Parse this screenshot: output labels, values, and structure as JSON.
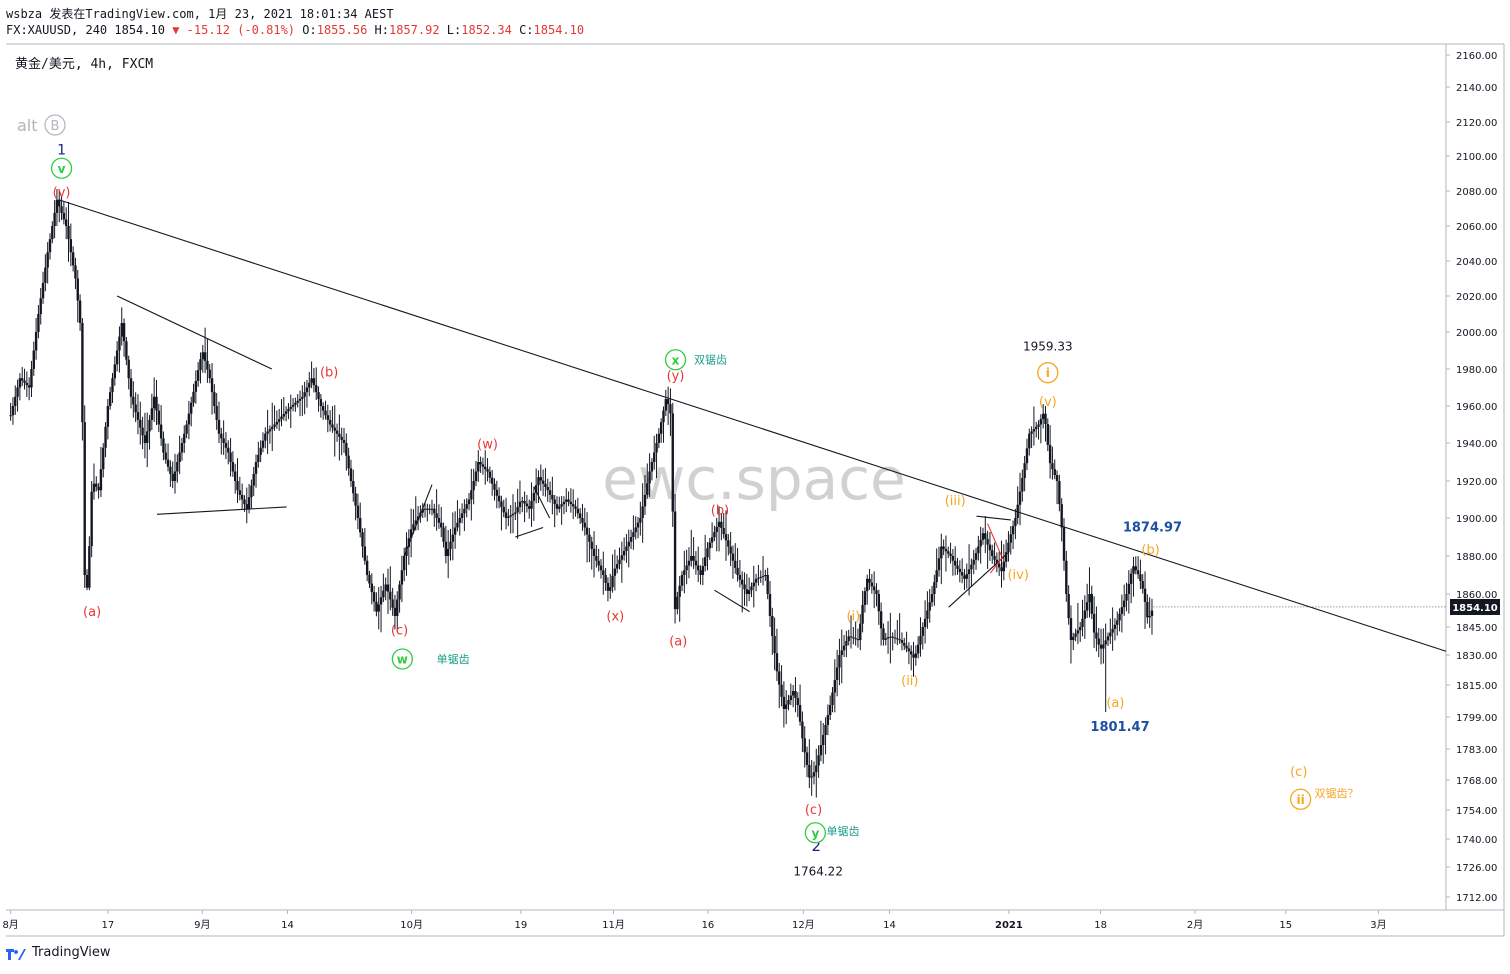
{
  "header": {
    "line1": "wsbza 发表在TradingView.com, 1月 23, 2021 18:01:34 AEST",
    "symbol": "FX:XAUUSD, 240 1854.10",
    "change": "-15.12 (-0.81%)",
    "o_label": "O:",
    "o": "1855.56",
    "h_label": "H:",
    "h": "1857.92",
    "l_label": "L:",
    "l": "1852.34",
    "c_label": "C:",
    "c": "1854.10"
  },
  "symbol_label": "黄金/美元, 4h, FXCM",
  "alt_label": "alt",
  "alt_badge": "B",
  "watermark": "ewc.space",
  "footer": {
    "brand": "TradingView"
  },
  "colors": {
    "candle": "#131722",
    "red": "#e53935",
    "green": "#2ecc40",
    "orange": "#f5a623",
    "blue": "#1a237e",
    "navy": "#1e4fa0",
    "teal": "#1a9e8a"
  },
  "chart_data": {
    "type": "candlestick",
    "ylim": [
      1698,
      2168
    ],
    "yticks": [
      "2160.00",
      "2140.00",
      "2120.00",
      "2100.00",
      "2080.00",
      "2060.00",
      "2040.00",
      "2020.00",
      "2000.00",
      "1980.00",
      "1960.00",
      "1940.00",
      "1920.00",
      "1900.00",
      "1880.00",
      "1860.00",
      "1845.00",
      "1830.00",
      "1815.00",
      "1799.00",
      "1783.00",
      "1768.00",
      "1754.00",
      "1740.00",
      "1726.00",
      "1712.00"
    ],
    "xticks": [
      {
        "label": "8月",
        "x": 0.0
      },
      {
        "label": "17",
        "x": 10.5
      },
      {
        "label": "9月",
        "x": 20.7
      },
      {
        "label": "14",
        "x": 29.9
      },
      {
        "label": "10月",
        "x": 43.3
      },
      {
        "label": "19",
        "x": 55.1
      },
      {
        "label": "11月",
        "x": 65.1
      },
      {
        "label": "16",
        "x": 75.3
      },
      {
        "label": "12月",
        "x": 85.6
      },
      {
        "label": "14",
        "x": 94.9
      },
      {
        "label": "2021",
        "x": 107.8
      },
      {
        "label": "18",
        "x": 117.7
      },
      {
        "label": "2月",
        "x": 127.9
      },
      {
        "label": "15",
        "x": 137.7
      },
      {
        "label": "3月",
        "x": 147.7
      }
    ],
    "last_price": "1854.10",
    "price_path": [
      [
        0,
        1955
      ],
      [
        1,
        1975
      ],
      [
        2,
        1970
      ],
      [
        3,
        2010
      ],
      [
        4,
        2045
      ],
      [
        5,
        2075
      ],
      [
        6,
        2060
      ],
      [
        7,
        2030
      ],
      [
        7.6,
        2000
      ],
      [
        8.0,
        1870
      ],
      [
        8.3,
        1862
      ],
      [
        8.8,
        1920
      ],
      [
        9.5,
        1915
      ],
      [
        10.5,
        1960
      ],
      [
        12.0,
        2005
      ],
      [
        13.0,
        1965
      ],
      [
        14.5,
        1940
      ],
      [
        15.5,
        1965
      ],
      [
        16.5,
        1935
      ],
      [
        17.5,
        1920
      ],
      [
        19.0,
        1950
      ],
      [
        20.7,
        1990
      ],
      [
        21.5,
        1975
      ],
      [
        22.5,
        1945
      ],
      [
        23.5,
        1935
      ],
      [
        24.5,
        1915
      ],
      [
        25.5,
        1905
      ],
      [
        26.5,
        1930
      ],
      [
        27.5,
        1945
      ],
      [
        28.5,
        1950
      ],
      [
        29.9,
        1958
      ],
      [
        31.5,
        1965
      ],
      [
        32.5,
        1975
      ],
      [
        33.5,
        1960
      ],
      [
        34.5,
        1950
      ],
      [
        36.0,
        1940
      ],
      [
        37.5,
        1900
      ],
      [
        38.5,
        1870
      ],
      [
        39.5,
        1852
      ],
      [
        40.5,
        1865
      ],
      [
        41.5,
        1850
      ],
      [
        42.5,
        1880
      ],
      [
        43.3,
        1895
      ],
      [
        44.5,
        1905
      ],
      [
        45.5,
        1905
      ],
      [
        46.5,
        1895
      ],
      [
        47.0,
        1880
      ],
      [
        48.0,
        1895
      ],
      [
        49.5,
        1910
      ],
      [
        50.5,
        1930
      ],
      [
        51.5,
        1925
      ],
      [
        52.5,
        1912
      ],
      [
        53.5,
        1900
      ],
      [
        54.5,
        1903
      ],
      [
        55.1,
        1910
      ],
      [
        56.0,
        1905
      ],
      [
        57.0,
        1922
      ],
      [
        58.0,
        1915
      ],
      [
        59.0,
        1905
      ],
      [
        60.0,
        1910
      ],
      [
        61.0,
        1905
      ],
      [
        62.0,
        1895
      ],
      [
        63.0,
        1880
      ],
      [
        64.0,
        1870
      ],
      [
        64.6,
        1860
      ],
      [
        65.1,
        1872
      ],
      [
        66.5,
        1885
      ],
      [
        68.0,
        1900
      ],
      [
        69.0,
        1925
      ],
      [
        70.0,
        1945
      ],
      [
        70.8,
        1965
      ],
      [
        71.3,
        1955
      ],
      [
        71.7,
        1852
      ],
      [
        72.5,
        1870
      ],
      [
        73.5,
        1880
      ],
      [
        74.5,
        1870
      ],
      [
        75.3,
        1885
      ],
      [
        76.5,
        1898
      ],
      [
        77.5,
        1885
      ],
      [
        78.5,
        1870
      ],
      [
        79.5,
        1860
      ],
      [
        80.5,
        1868
      ],
      [
        81.5,
        1870
      ],
      [
        82.2,
        1842
      ],
      [
        82.8,
        1820
      ],
      [
        83.5,
        1803
      ],
      [
        84.5,
        1812
      ],
      [
        85.0,
        1805
      ],
      [
        85.6,
        1785
      ],
      [
        86.3,
        1768
      ],
      [
        86.9,
        1773
      ],
      [
        87.5,
        1785
      ],
      [
        88.5,
        1805
      ],
      [
        89.5,
        1830
      ],
      [
        90.5,
        1840
      ],
      [
        91.5,
        1838
      ],
      [
        92.0,
        1855
      ],
      [
        92.5,
        1868
      ],
      [
        93.5,
        1860
      ],
      [
        94.2,
        1838
      ],
      [
        94.9,
        1840
      ],
      [
        96.0,
        1838
      ],
      [
        97.0,
        1832
      ],
      [
        97.6,
        1828
      ],
      [
        98.5,
        1845
      ],
      [
        99.5,
        1860
      ],
      [
        100.5,
        1885
      ],
      [
        101.5,
        1880
      ],
      [
        102.0,
        1875
      ],
      [
        103.0,
        1868
      ],
      [
        104.0,
        1878
      ],
      [
        105.0,
        1892
      ],
      [
        106.0,
        1880
      ],
      [
        107.0,
        1872
      ],
      [
        107.8,
        1888
      ],
      [
        108.5,
        1900
      ],
      [
        109.2,
        1920
      ],
      [
        110.0,
        1945
      ],
      [
        111.0,
        1950
      ],
      [
        111.6,
        1957
      ],
      [
        112.2,
        1930
      ],
      [
        113.0,
        1920
      ],
      [
        113.5,
        1895
      ],
      [
        114.0,
        1860
      ],
      [
        114.5,
        1838
      ],
      [
        115.5,
        1845
      ],
      [
        116.5,
        1860
      ],
      [
        117.0,
        1842
      ],
      [
        117.7,
        1833
      ],
      [
        118.5,
        1840
      ],
      [
        119.5,
        1848
      ],
      [
        120.5,
        1860
      ],
      [
        121.2,
        1875
      ],
      [
        121.8,
        1870
      ],
      [
        122.3,
        1862
      ],
      [
        122.8,
        1848
      ],
      [
        123.4,
        1854
      ]
    ],
    "lows": {
      "8.3": 1862,
      "86.3": 1764.2,
      "118.3": 1801.5
    },
    "trendlines": [
      {
        "p1": [
          5.2,
          2075
        ],
        "p2": [
          155,
          1832
        ],
        "color": "#131722"
      },
      {
        "p1": [
          11.5,
          2020
        ],
        "p2": [
          28.2,
          1980
        ],
        "color": "#131722"
      },
      {
        "p1": [
          15.8,
          1902
        ],
        "p2": [
          29.8,
          1906
        ],
        "color": "#131722"
      },
      {
        "p1": [
          42.5,
          1880
        ],
        "p2": [
          45.5,
          1918
        ],
        "color": "#131722"
      },
      {
        "p1": [
          54.5,
          1890
        ],
        "p2": [
          57.5,
          1895
        ],
        "color": "#131722"
      },
      {
        "p1": [
          56.5,
          1917
        ],
        "p2": [
          58.2,
          1900
        ],
        "color": "#131722"
      },
      {
        "p1": [
          76.0,
          1862
        ],
        "p2": [
          79.8,
          1852
        ],
        "color": "#131722"
      },
      {
        "p1": [
          101.3,
          1854
        ],
        "p2": [
          107.8,
          1882
        ],
        "color": "#131722"
      },
      {
        "p1": [
          104.3,
          1901
        ],
        "p2": [
          108.0,
          1899
        ],
        "color": "#131722"
      },
      {
        "p1": [
          105.5,
          1897
        ],
        "p2": [
          107.0,
          1880
        ],
        "color": "#e53935"
      },
      {
        "p1": [
          105.8,
          1871
        ],
        "p2": [
          107.2,
          1880
        ],
        "color": "#e53935"
      }
    ],
    "labels": [
      {
        "text": "1",
        "x": 5.5,
        "y": 2101,
        "color": "#1a237e",
        "size": 14
      },
      {
        "text": "(v)",
        "x": 5.5,
        "y": 2077,
        "color": "#e53935",
        "size": 13
      },
      {
        "text": "(a)",
        "x": 8.8,
        "y": 1850,
        "color": "#e53935",
        "size": 13
      },
      {
        "text": "(b)",
        "x": 34.4,
        "y": 1976,
        "color": "#e53935",
        "size": 13
      },
      {
        "text": "(c)",
        "x": 42.0,
        "y": 1841,
        "color": "#e53935",
        "size": 13
      },
      {
        "text": "单锯齿",
        "x": 46.0,
        "y": 1826,
        "color": "#1a9e8a",
        "size": 11,
        "anchor": "start"
      },
      {
        "text": "(w)",
        "x": 51.5,
        "y": 1937,
        "color": "#e53935",
        "size": 13
      },
      {
        "text": "(x)",
        "x": 65.3,
        "y": 1848,
        "color": "#e53935",
        "size": 13
      },
      {
        "text": "双锯齿",
        "x": 73.8,
        "y": 1983,
        "color": "#1a9e8a",
        "size": 11,
        "anchor": "start"
      },
      {
        "text": "(y)",
        "x": 71.8,
        "y": 1974,
        "color": "#e53935",
        "size": 13
      },
      {
        "text": "(b)",
        "x": 76.6,
        "y": 1902,
        "color": "#e53935",
        "size": 13
      },
      {
        "text": "(a)",
        "x": 72.1,
        "y": 1835,
        "color": "#e53935",
        "size": 13
      },
      {
        "text": "(c)",
        "x": 86.7,
        "y": 1752,
        "color": "#e53935",
        "size": 13
      },
      {
        "text": "单锯齿",
        "x": 88.1,
        "y": 1742,
        "color": "#1a9e8a",
        "size": 11,
        "anchor": "start"
      },
      {
        "text": "2",
        "x": 87.0,
        "y": 1734,
        "color": "#1a237e",
        "size": 15
      },
      {
        "text": "1764.22",
        "x": 87.2,
        "y": 1722,
        "color": "#131722",
        "size": 12
      },
      {
        "text": "(i)",
        "x": 91.0,
        "y": 1848,
        "color": "#f5a623",
        "size": 13
      },
      {
        "text": "(ii)",
        "x": 97.1,
        "y": 1815,
        "color": "#f5a623",
        "size": 13
      },
      {
        "text": "(iii)",
        "x": 102.0,
        "y": 1907,
        "color": "#f5a623",
        "size": 13
      },
      {
        "text": "(iv)",
        "x": 108.8,
        "y": 1868,
        "color": "#f5a623",
        "size": 13
      },
      {
        "text": "1959.33",
        "x": 112.0,
        "y": 1990,
        "color": "#131722",
        "size": 12
      },
      {
        "text": "(v)",
        "x": 112.0,
        "y": 1960,
        "color": "#f5a623",
        "size": 13
      },
      {
        "text": "1874.97",
        "x": 123.3,
        "y": 1893,
        "color": "#1e4fa0",
        "size": 13,
        "weight": "bold"
      },
      {
        "text": "(b)",
        "x": 123.1,
        "y": 1881,
        "color": "#f5a623",
        "size": 13
      },
      {
        "text": "(a)",
        "x": 119.3,
        "y": 1804,
        "color": "#f5a623",
        "size": 13
      },
      {
        "text": "1801.47",
        "x": 119.8,
        "y": 1792,
        "color": "#1e4fa0",
        "size": 13,
        "weight": "bold"
      },
      {
        "text": "(c)",
        "x": 139.1,
        "y": 1770,
        "color": "#f5a623",
        "size": 13
      },
      {
        "text": "双锯齿？",
        "x": 140.8,
        "y": 1760,
        "color": "#f5a623",
        "size": 11,
        "anchor": "start"
      }
    ],
    "circled": [
      {
        "text": "v",
        "x": 5.5,
        "y": 2093,
        "color": "#2ecc40"
      },
      {
        "text": "w",
        "x": 42.3,
        "y": 1828,
        "color": "#2ecc40"
      },
      {
        "text": "x",
        "x": 71.8,
        "y": 1985,
        "color": "#2ecc40"
      },
      {
        "text": "y",
        "x": 86.9,
        "y": 1743,
        "color": "#2ecc40"
      },
      {
        "text": "i",
        "x": 112.0,
        "y": 1978,
        "color": "#f5a623"
      },
      {
        "text": "ii",
        "x": 139.3,
        "y": 1759,
        "color": "#f5a623"
      }
    ]
  }
}
